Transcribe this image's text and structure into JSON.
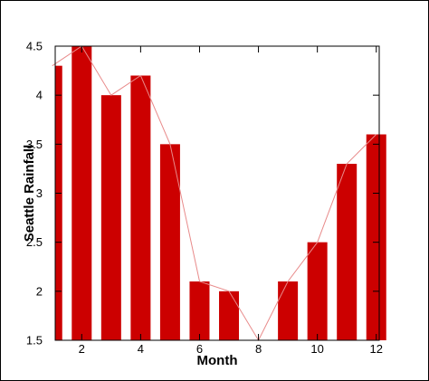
{
  "chart_data": {
    "type": "bar",
    "xlabel": "Month",
    "ylabel": "Seattle Rainfall",
    "xlim": [
      1.1,
      12.1
    ],
    "ylim": [
      1.5,
      4.5
    ],
    "x_ticks": [
      2,
      4,
      6,
      8,
      10,
      12
    ],
    "y_ticks": [
      1.5,
      2,
      2.5,
      3,
      3.5,
      4,
      4.5
    ],
    "bar_color": "#cc0000",
    "line_color": "#e88a8a",
    "grid": false,
    "series": [
      {
        "x": [
          1,
          2,
          3,
          4,
          5,
          6,
          7,
          8,
          9,
          10,
          11,
          12
        ],
        "values": [
          4.3,
          4.5,
          4.0,
          4.2,
          3.5,
          2.1,
          2.0,
          1.5,
          2.1,
          2.5,
          3.3,
          3.6
        ]
      }
    ]
  }
}
